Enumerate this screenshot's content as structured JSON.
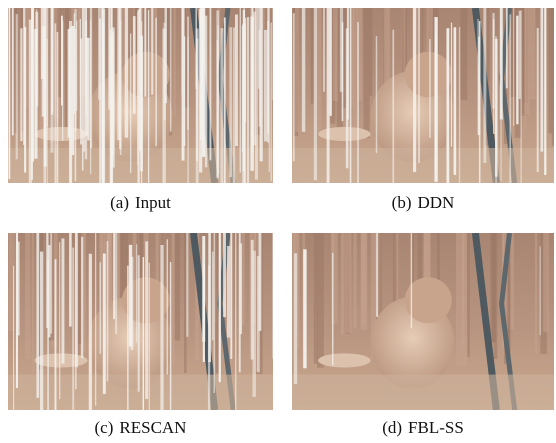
{
  "panels": [
    {
      "label": "(a)",
      "caption": "Input"
    },
    {
      "label": "(b)",
      "caption": "DDN"
    },
    {
      "label": "(c)",
      "caption": "RESCAN"
    },
    {
      "label": "(d)",
      "caption": "FBL-SS"
    }
  ]
}
